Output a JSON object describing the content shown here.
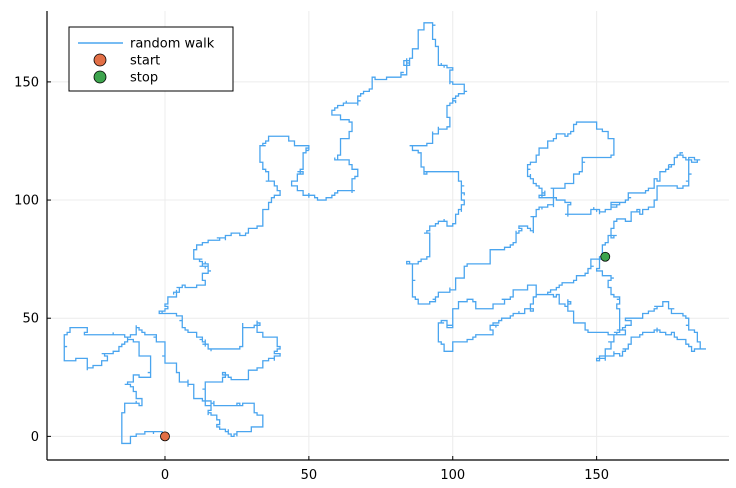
{
  "chart_data": {
    "type": "line",
    "title": "",
    "xlabel": "",
    "ylabel": "",
    "xlim": [
      -41,
      196
    ],
    "ylim": [
      -10,
      180
    ],
    "xticks": [
      0,
      50,
      100,
      150
    ],
    "yticks": [
      0,
      50,
      100,
      150
    ],
    "grid": true,
    "legend_position": "top-left",
    "series": [
      {
        "name": "random walk",
        "kind": "line",
        "color": "#4aa5ef",
        "points": [
          [
            0,
            0
          ],
          [
            -5,
            2
          ],
          [
            -12,
            -3
          ],
          [
            -15,
            8
          ],
          [
            -8,
            14
          ],
          [
            -14,
            22
          ],
          [
            -5,
            29
          ],
          [
            -9,
            40
          ],
          [
            -25,
            43
          ],
          [
            -32,
            46
          ],
          [
            -35,
            35
          ],
          [
            -27,
            29
          ],
          [
            -18,
            36
          ],
          [
            -10,
            47
          ],
          [
            -3,
            40
          ],
          [
            0,
            31
          ],
          [
            5,
            23
          ],
          [
            10,
            16
          ],
          [
            16,
            9
          ],
          [
            20,
            3
          ],
          [
            25,
            0
          ],
          [
            33,
            4
          ],
          [
            34,
            9
          ],
          [
            28,
            14
          ],
          [
            17,
            13
          ],
          [
            14,
            22
          ],
          [
            21,
            27
          ],
          [
            29,
            24
          ],
          [
            36,
            32
          ],
          [
            38,
            42
          ],
          [
            32,
            49
          ],
          [
            27,
            39
          ],
          [
            18,
            37
          ],
          [
            9,
            44
          ],
          [
            -2,
            52
          ],
          [
            3,
            60
          ],
          [
            12,
            64
          ],
          [
            16,
            70
          ],
          [
            10,
            78
          ],
          [
            21,
            83
          ],
          [
            29,
            88
          ],
          [
            34,
            95
          ],
          [
            40,
            103
          ],
          [
            36,
            112
          ],
          [
            33,
            121
          ],
          [
            42,
            127
          ],
          [
            50,
            123
          ],
          [
            48,
            113
          ],
          [
            44,
            106
          ],
          [
            56,
            100
          ],
          [
            63,
            104
          ],
          [
            67,
            112
          ],
          [
            59,
            117
          ],
          [
            61,
            126
          ],
          [
            65,
            133
          ],
          [
            58,
            136
          ],
          [
            66,
            141
          ],
          [
            72,
            147
          ],
          [
            78,
            152
          ],
          [
            84,
            159
          ],
          [
            88,
            166
          ],
          [
            90,
            175
          ],
          [
            93,
            168
          ],
          [
            95,
            159
          ],
          [
            100,
            156
          ],
          [
            104,
            149
          ],
          [
            100,
            141
          ],
          [
            98,
            131
          ],
          [
            93,
            125
          ],
          [
            85,
            123
          ],
          [
            89,
            114
          ],
          [
            99,
            112
          ],
          [
            104,
            106
          ],
          [
            103,
            95
          ],
          [
            95,
            91
          ],
          [
            90,
            86
          ],
          [
            92,
            78
          ],
          [
            84,
            73
          ],
          [
            86,
            62
          ],
          [
            94,
            57
          ],
          [
            99,
            61
          ],
          [
            104,
            68
          ],
          [
            110,
            73
          ],
          [
            118,
            79
          ],
          [
            122,
            86
          ],
          [
            128,
            91
          ],
          [
            133,
            98
          ],
          [
            138,
            105
          ],
          [
            144,
            111
          ],
          [
            150,
            118
          ],
          [
            156,
            124
          ],
          [
            152,
            130
          ],
          [
            143,
            133
          ],
          [
            135,
            125
          ],
          [
            130,
            119
          ],
          [
            126,
            110
          ],
          [
            132,
            104
          ],
          [
            140,
            96
          ],
          [
            148,
            94
          ],
          [
            155,
            96
          ],
          [
            160,
            100
          ],
          [
            165,
            103
          ],
          [
            170,
            109
          ],
          [
            175,
            114
          ],
          [
            180,
            120
          ],
          [
            186,
            117
          ],
          [
            182,
            110
          ],
          [
            175,
            106
          ],
          [
            171,
            101
          ],
          [
            166,
            96
          ],
          [
            160,
            91
          ],
          [
            155,
            84
          ],
          [
            152,
            76
          ],
          [
            148,
            71
          ],
          [
            143,
            68
          ],
          [
            138,
            65
          ],
          [
            132,
            60
          ],
          [
            127,
            56
          ],
          [
            121,
            52
          ],
          [
            116,
            48
          ],
          [
            110,
            43
          ],
          [
            104,
            40
          ],
          [
            99,
            36
          ],
          [
            95,
            44
          ],
          [
            100,
            52
          ],
          [
            108,
            57
          ],
          [
            114,
            54
          ],
          [
            120,
            58
          ],
          [
            128,
            64
          ],
          [
            135,
            60
          ],
          [
            140,
            53
          ],
          [
            146,
            48
          ],
          [
            153,
            44
          ],
          [
            160,
            49
          ],
          [
            167,
            52
          ],
          [
            173,
            57
          ],
          [
            179,
            52
          ],
          [
            182,
            45
          ],
          [
            185,
            40
          ],
          [
            188,
            37
          ],
          [
            181,
            39
          ],
          [
            176,
            43
          ],
          [
            168,
            44
          ],
          [
            162,
            40
          ],
          [
            158,
            34
          ],
          [
            153,
            32
          ],
          [
            150,
            33
          ],
          [
            155,
            38
          ],
          [
            160,
            45
          ],
          [
            158,
            56
          ],
          [
            154,
            63
          ],
          [
            150,
            70
          ],
          [
            153,
            76
          ]
        ]
      },
      {
        "name": "start",
        "kind": "marker",
        "color": "#e26f46",
        "points": [
          [
            0,
            0
          ]
        ]
      },
      {
        "name": "stop",
        "kind": "marker",
        "color": "#3da44d",
        "points": [
          [
            153,
            76
          ]
        ]
      }
    ]
  },
  "colors": {
    "axis": "#000000",
    "grid": "#ececec",
    "background": "#ffffff"
  }
}
